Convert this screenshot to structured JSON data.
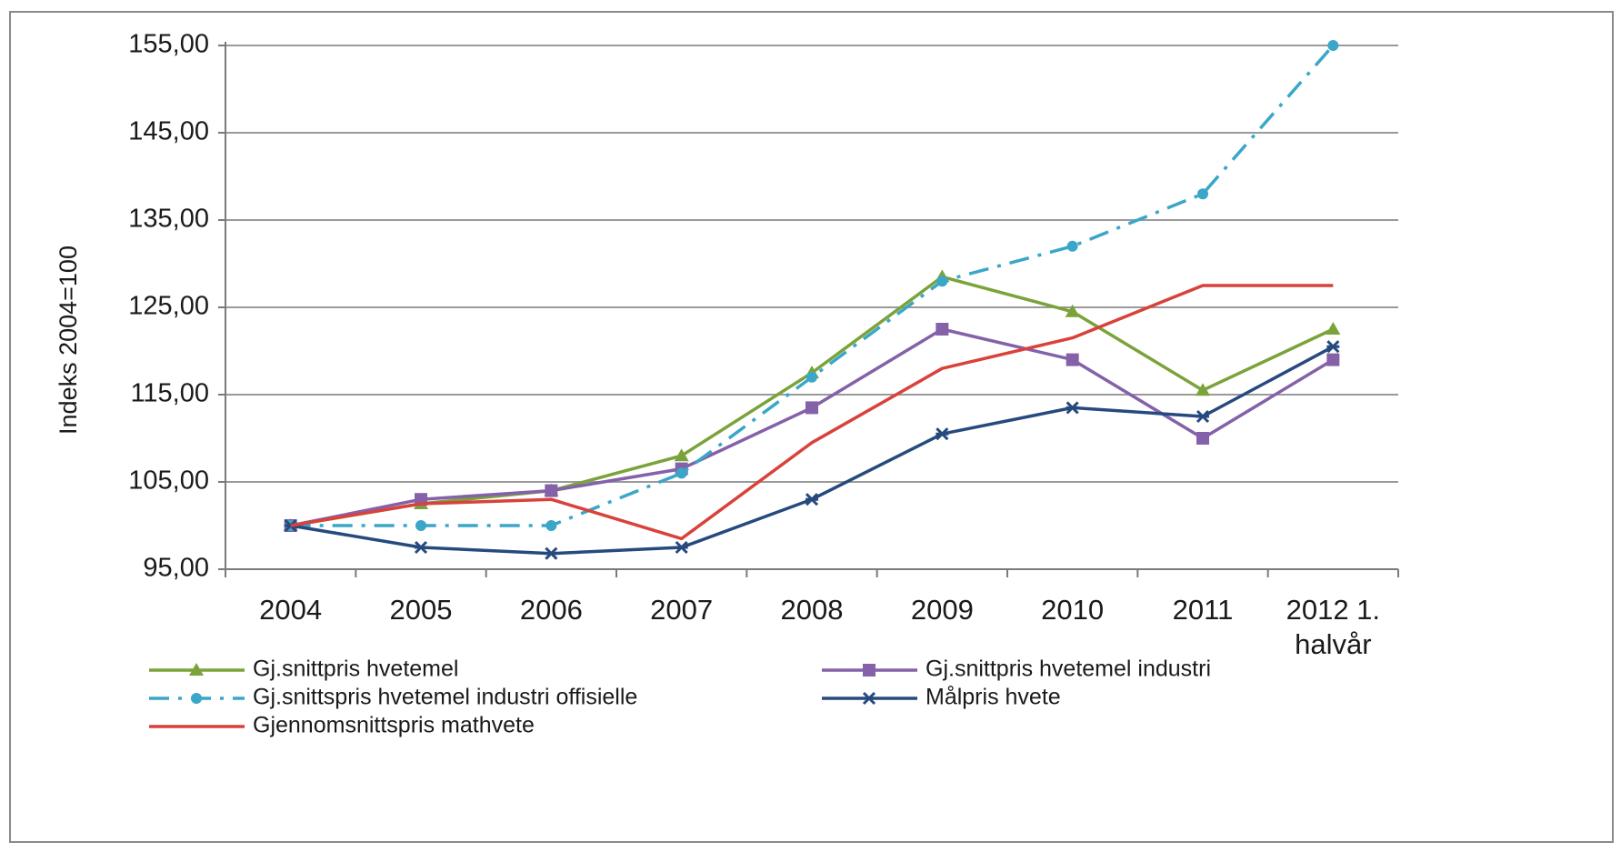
{
  "chart_data": {
    "type": "line",
    "title": "",
    "xlabel": "",
    "ylabel": "Indeks 2004=100",
    "categories": [
      "2004",
      "2005",
      "2006",
      "2007",
      "2008",
      "2009",
      "2010",
      "2011",
      "2012 1. halvår"
    ],
    "ylim": [
      95,
      155
    ],
    "yticks": [
      "95,00",
      "105,00",
      "115,00",
      "125,00",
      "135,00",
      "145,00",
      "155,00"
    ],
    "grid": true,
    "legend_position": "bottom",
    "series": [
      {
        "name": "Gj.snittpris hvetemel",
        "color": "#7aa33a",
        "dash": "solid",
        "marker": "triangle",
        "values": [
          100,
          102.5,
          104,
          108,
          117.5,
          128.5,
          124.5,
          115.5,
          122.5
        ]
      },
      {
        "name": "Gj.snittpris hvetemel industri",
        "color": "#8461a8",
        "dash": "solid",
        "marker": "square",
        "values": [
          100,
          103,
          104,
          106.5,
          113.5,
          122.5,
          119,
          110,
          119
        ]
      },
      {
        "name": "Gj.snittspris hvetemel industri offisielle",
        "color": "#3aa6c8",
        "dash": "dashdot",
        "marker": "circle",
        "values": [
          100,
          100,
          100,
          106,
          117,
          128,
          132,
          138,
          155
        ]
      },
      {
        "name": "Målpris hvete",
        "color": "#264a7e",
        "dash": "solid",
        "marker": "star",
        "values": [
          100,
          97.5,
          96.8,
          97.5,
          103,
          110.5,
          113.5,
          112.5,
          120.5
        ]
      },
      {
        "name": "Gjennomsnittspris mathvete",
        "color": "#d9423a",
        "dash": "solid",
        "marker": "none",
        "values": [
          100,
          102.5,
          103,
          98.5,
          109.5,
          118,
          121.5,
          127.5,
          127.5
        ]
      }
    ]
  }
}
